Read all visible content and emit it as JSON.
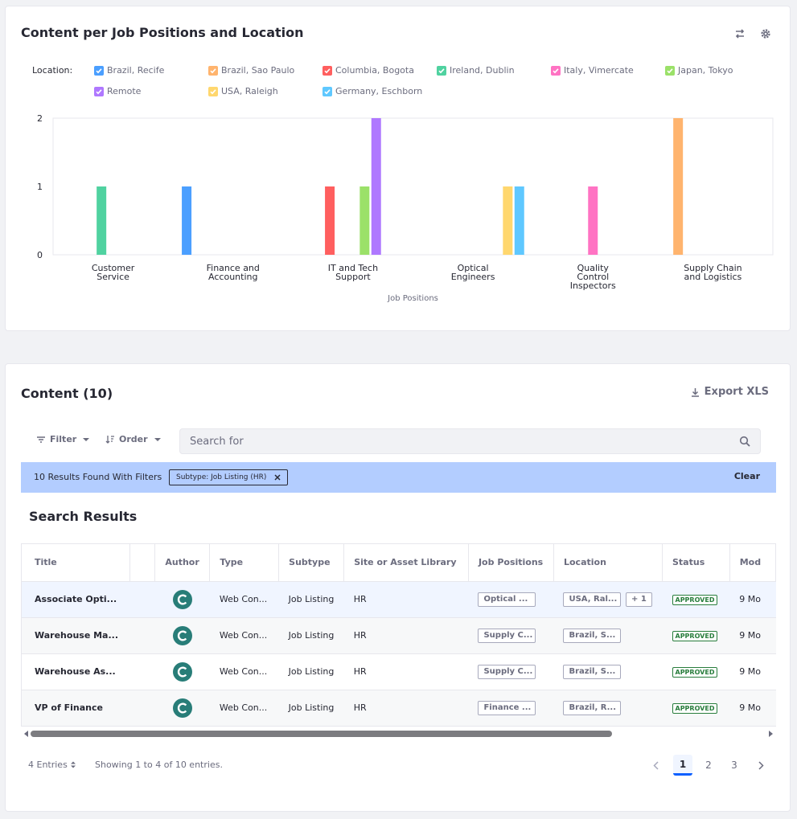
{
  "chart_card": {
    "title": "Content per Job Positions and Location",
    "swap_icon": "swap-icon",
    "settings_icon": "gear-icon",
    "legend_label": "Location:",
    "legend": [
      {
        "label": "Brazil, Recife",
        "color": "#4b9fff"
      },
      {
        "label": "Brazil, Sao Paulo",
        "color": "#ffb46e"
      },
      {
        "label": "Columbia, Bogota",
        "color": "#ff5f5f"
      },
      {
        "label": "Ireland, Dublin",
        "color": "#50d2a0"
      },
      {
        "label": "Italy, Vimercate",
        "color": "#ff73c3"
      },
      {
        "label": "Japan, Tokyo",
        "color": "#9be169"
      },
      {
        "label": "Remote",
        "color": "#af78ff"
      },
      {
        "label": "USA, Raleigh",
        "color": "#ffd76e"
      },
      {
        "label": "Germany, Eschborn",
        "color": "#5fc8ff"
      }
    ]
  },
  "chart_data": {
    "type": "bar",
    "xlabel": "Job Positions",
    "ylabel": "",
    "ylim": [
      0,
      2
    ],
    "yticks": [
      0,
      1,
      2
    ],
    "categories": [
      [
        "Customer",
        "Service"
      ],
      [
        "Finance and",
        "Accounting"
      ],
      [
        "IT and Tech",
        "Support"
      ],
      [
        "Optical",
        "Engineers"
      ],
      [
        "Quality",
        "Control",
        "Inspectors"
      ],
      [
        "Supply Chain",
        "and Logistics"
      ]
    ],
    "series": [
      {
        "name": "Brazil, Recife",
        "color": "#4b9fff",
        "values": [
          0,
          1,
          0,
          0,
          0,
          0
        ]
      },
      {
        "name": "Brazil, Sao Paulo",
        "color": "#ffb46e",
        "values": [
          0,
          0,
          0,
          0,
          0,
          2
        ]
      },
      {
        "name": "Columbia, Bogota",
        "color": "#ff5f5f",
        "values": [
          0,
          0,
          1,
          0,
          0,
          0
        ]
      },
      {
        "name": "Ireland, Dublin",
        "color": "#50d2a0",
        "values": [
          1,
          0,
          0,
          0,
          0,
          0
        ]
      },
      {
        "name": "Italy, Vimercate",
        "color": "#ff73c3",
        "values": [
          0,
          0,
          0,
          0,
          1,
          0
        ]
      },
      {
        "name": "Japan, Tokyo",
        "color": "#9be169",
        "values": [
          0,
          0,
          1,
          0,
          0,
          0
        ]
      },
      {
        "name": "Remote",
        "color": "#af78ff",
        "values": [
          0,
          0,
          2,
          0,
          0,
          0
        ]
      },
      {
        "name": "USA, Raleigh",
        "color": "#ffd76e",
        "values": [
          0,
          0,
          0,
          1,
          0,
          0
        ]
      },
      {
        "name": "Germany, Eschborn",
        "color": "#5fc8ff",
        "values": [
          0,
          0,
          0,
          1,
          0,
          0
        ]
      }
    ],
    "grid": false,
    "legend_position": "top"
  },
  "content_card": {
    "title": "Content (10)",
    "export_label": "Export XLS",
    "filter_label": "Filter",
    "order_label": "Order",
    "search_placeholder": "Search for",
    "results_text": "10 Results Found With Filters",
    "filter_chip": "Subtype: Job Listing (HR)",
    "clear_label": "Clear",
    "search_results_title": "Search Results",
    "columns": [
      "Title",
      "",
      "Author",
      "Type",
      "Subtype",
      "Site or Asset Library",
      "Job Positions",
      "Location",
      "Status",
      "Mod"
    ],
    "rows": [
      {
        "title": "Associate Opti...",
        "author_initial": "C",
        "type": "Web Con...",
        "subtype": "Job Listing",
        "site": "HR",
        "job": "Optical ...",
        "location": "USA, Ral...",
        "extra": "+ 1",
        "status": "APPROVED",
        "modified": "9 Mo"
      },
      {
        "title": "Warehouse Ma...",
        "author_initial": "C",
        "type": "Web Con...",
        "subtype": "Job Listing",
        "site": "HR",
        "job": "Supply C...",
        "location": "Brazil, S...",
        "extra": "",
        "status": "APPROVED",
        "modified": "9 Mo"
      },
      {
        "title": "Warehouse As...",
        "author_initial": "C",
        "type": "Web Con...",
        "subtype": "Job Listing",
        "site": "HR",
        "job": "Supply C...",
        "location": "Brazil, S...",
        "extra": "",
        "status": "APPROVED",
        "modified": "9 Mo"
      },
      {
        "title": "VP of Finance",
        "author_initial": "C",
        "type": "Web Con...",
        "subtype": "Job Listing",
        "site": "HR",
        "job": "Finance ...",
        "location": "Brazil, R...",
        "extra": "",
        "status": "APPROVED",
        "modified": "9 Mo"
      }
    ],
    "entries_label": "4 Entries",
    "showing_text": "Showing 1 to 4 of 10 entries.",
    "pages": [
      "1",
      "2",
      "3"
    ],
    "current_page": "1"
  }
}
